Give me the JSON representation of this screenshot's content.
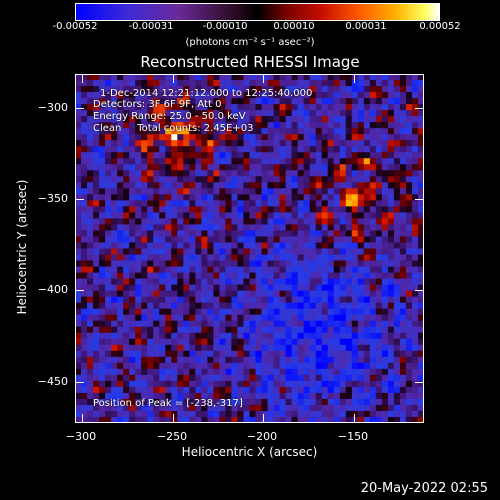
{
  "colorbar": {
    "ticks": [
      "-0.00052",
      "-0.00031",
      "-0.00010",
      "0.00010",
      "0.00031",
      "0.00052"
    ],
    "units": "(photons cm⁻² s⁻¹ asec⁻²)"
  },
  "title": "Reconstructed RHESSI Image",
  "annotations": {
    "time_range": "1-Dec-2014 12:21:12.000 to 12:25:40.000",
    "detectors": "Detectors: 3F 6F 9F, Att 0",
    "energy": "Energy Range: 25.0 - 50.0 keV",
    "clean": "Clean     Total counts: 2.45E+03",
    "peak": "Position of Peak = [-238,-317]"
  },
  "axes": {
    "xlabel": "Heliocentric X (arcsec)",
    "ylabel": "Heliocentric Y (arcsec)",
    "xticks": [
      "−300",
      "−250",
      "−200",
      "−150"
    ],
    "yticks": [
      "−300",
      "−350",
      "−400",
      "−450"
    ],
    "xrange": [
      -310,
      -117
    ],
    "yrange": [
      -290,
      -483
    ]
  },
  "timestamp": "20-May-2022 02:55",
  "colors": {
    "negative": "#1f3df5",
    "neutral": "#4a2090",
    "positive": "#ff8c00",
    "max": "#ffffd0"
  }
}
